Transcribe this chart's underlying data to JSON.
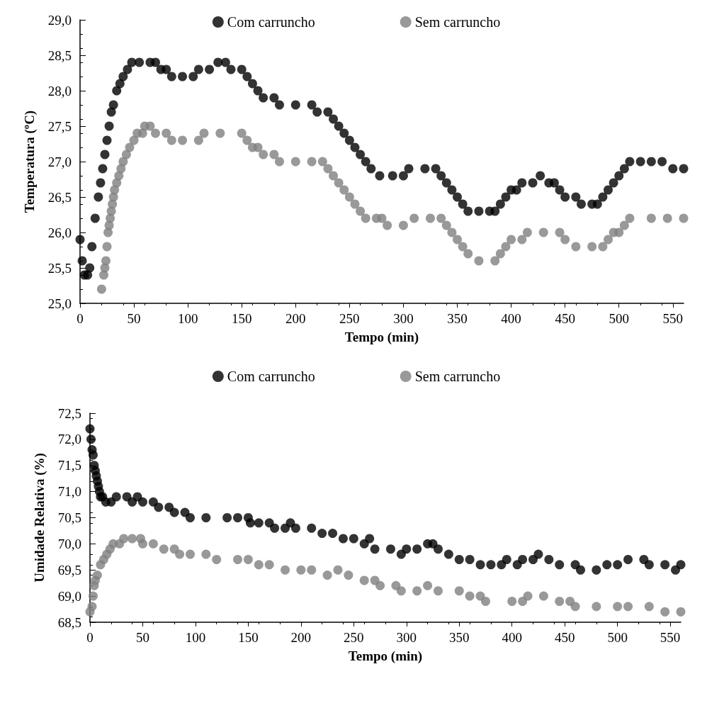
{
  "chart_data": [
    {
      "type": "scatter",
      "xlabel": "Tempo (min)",
      "ylabel": "Temperatura (ºC)",
      "xlim": [
        0,
        560
      ],
      "xticks": [
        0,
        50,
        100,
        150,
        200,
        250,
        300,
        350,
        400,
        450,
        500,
        550
      ],
      "ylim": [
        25,
        29
      ],
      "yticks": [
        {
          "value": 25,
          "label": "25,0"
        },
        {
          "value": 25.5,
          "label": "25,5"
        },
        {
          "value": 26,
          "label": "26,0"
        },
        {
          "value": 26.5,
          "label": "26,5"
        },
        {
          "value": 27,
          "label": "27,0"
        },
        {
          "value": 27.5,
          "label": "27,5"
        },
        {
          "value": 28,
          "label": "28,0"
        },
        {
          "value": 28.5,
          "label": "28,5"
        },
        {
          "value": 29,
          "label": "29,0"
        }
      ],
      "grid": false,
      "legend": "top",
      "marker": "circle",
      "series": [
        {
          "name": "Com carruncho",
          "color": "#000000",
          "x": [
            0,
            2,
            4,
            7,
            9,
            11,
            14,
            17,
            19,
            21,
            23,
            25,
            27,
            29,
            31,
            34,
            37,
            40,
            44,
            48,
            55,
            65,
            70,
            75,
            80,
            85,
            95,
            105,
            110,
            120,
            128,
            135,
            140,
            150,
            155,
            160,
            165,
            170,
            180,
            185,
            200,
            215,
            220,
            230,
            235,
            240,
            245,
            250,
            255,
            260,
            265,
            270,
            278,
            290,
            300,
            305,
            320,
            330,
            335,
            340,
            345,
            350,
            355,
            360,
            370,
            380,
            385,
            390,
            395,
            400,
            405,
            410,
            420,
            427,
            435,
            440,
            445,
            450,
            460,
            465,
            475,
            480,
            485,
            490,
            495,
            500,
            505,
            510,
            520,
            530,
            540,
            550,
            560
          ],
          "values": [
            25.9,
            25.6,
            25.4,
            25.4,
            25.5,
            25.8,
            26.2,
            26.5,
            26.7,
            26.9,
            27.1,
            27.3,
            27.5,
            27.7,
            27.8,
            28.0,
            28.1,
            28.2,
            28.3,
            28.4,
            28.4,
            28.4,
            28.4,
            28.3,
            28.3,
            28.2,
            28.2,
            28.2,
            28.3,
            28.3,
            28.4,
            28.4,
            28.3,
            28.3,
            28.2,
            28.1,
            28.0,
            27.9,
            27.9,
            27.8,
            27.8,
            27.8,
            27.7,
            27.7,
            27.6,
            27.5,
            27.4,
            27.3,
            27.2,
            27.1,
            27.0,
            26.9,
            26.8,
            26.8,
            26.8,
            26.9,
            26.9,
            26.9,
            26.8,
            26.7,
            26.6,
            26.5,
            26.4,
            26.3,
            26.3,
            26.3,
            26.3,
            26.4,
            26.5,
            26.6,
            26.6,
            26.7,
            26.7,
            26.8,
            26.7,
            26.7,
            26.6,
            26.5,
            26.5,
            26.4,
            26.4,
            26.4,
            26.5,
            26.6,
            26.7,
            26.8,
            26.9,
            27.0,
            27.0,
            27.0,
            27.0,
            26.9,
            26.9
          ]
        },
        {
          "name": "Sem carruncho",
          "color": "#808080",
          "x": [
            20,
            22,
            23,
            24,
            25,
            26,
            27,
            28,
            29,
            30,
            31,
            32,
            34,
            36,
            38,
            40,
            43,
            46,
            50,
            53,
            58,
            60,
            65,
            70,
            80,
            85,
            95,
            110,
            115,
            130,
            150,
            155,
            160,
            165,
            170,
            180,
            185,
            200,
            215,
            225,
            230,
            235,
            240,
            245,
            250,
            255,
            260,
            265,
            275,
            280,
            285,
            300,
            310,
            325,
            335,
            340,
            345,
            350,
            355,
            360,
            370,
            385,
            390,
            395,
            400,
            410,
            415,
            430,
            445,
            450,
            460,
            475,
            485,
            490,
            495,
            500,
            505,
            510,
            530,
            545,
            560
          ],
          "values": [
            25.2,
            25.4,
            25.5,
            25.6,
            25.8,
            26.0,
            26.1,
            26.2,
            26.3,
            26.4,
            26.5,
            26.6,
            26.7,
            26.8,
            26.9,
            27.0,
            27.1,
            27.2,
            27.3,
            27.4,
            27.4,
            27.5,
            27.5,
            27.4,
            27.4,
            27.3,
            27.3,
            27.3,
            27.4,
            27.4,
            27.4,
            27.3,
            27.2,
            27.2,
            27.1,
            27.1,
            27.0,
            27.0,
            27.0,
            27.0,
            26.9,
            26.8,
            26.7,
            26.6,
            26.5,
            26.4,
            26.3,
            26.2,
            26.2,
            26.2,
            26.1,
            26.1,
            26.2,
            26.2,
            26.2,
            26.1,
            26.0,
            25.9,
            25.8,
            25.7,
            25.6,
            25.6,
            25.7,
            25.8,
            25.9,
            25.9,
            26.0,
            26.0,
            26.0,
            25.9,
            25.8,
            25.8,
            25.8,
            25.9,
            26.0,
            26.0,
            26.1,
            26.2,
            26.2,
            26.2,
            26.2
          ]
        }
      ]
    },
    {
      "type": "scatter",
      "xlabel": "Tempo (min)",
      "ylabel": "Umidade Relativa (%)",
      "xlim": [
        0,
        560
      ],
      "xticks": [
        0,
        50,
        100,
        150,
        200,
        250,
        300,
        350,
        400,
        450,
        500,
        550
      ],
      "ylim": [
        68.5,
        72.5
      ],
      "yticks": [
        {
          "value": 68.5,
          "label": "68,5"
        },
        {
          "value": 69,
          "label": "69,0"
        },
        {
          "value": 69.5,
          "label": "69,5"
        },
        {
          "value": 70,
          "label": "70,0"
        },
        {
          "value": 70.5,
          "label": "70,5"
        },
        {
          "value": 71,
          "label": "71,0"
        },
        {
          "value": 71.5,
          "label": "71,5"
        },
        {
          "value": 72,
          "label": "72,0"
        },
        {
          "value": 72.5,
          "label": "72,5"
        }
      ],
      "grid": false,
      "legend": "top",
      "marker": "circle",
      "series": [
        {
          "name": "Com carruncho",
          "color": "#000000",
          "x": [
            0,
            1,
            2,
            3,
            4,
            5,
            6,
            7,
            8,
            9,
            10,
            12,
            15,
            20,
            25,
            35,
            40,
            45,
            50,
            60,
            65,
            75,
            80,
            90,
            95,
            110,
            130,
            140,
            150,
            152,
            160,
            170,
            175,
            185,
            190,
            195,
            210,
            220,
            230,
            240,
            250,
            260,
            265,
            270,
            285,
            295,
            300,
            310,
            320,
            325,
            330,
            340,
            350,
            360,
            370,
            380,
            390,
            395,
            405,
            410,
            420,
            425,
            435,
            445,
            460,
            465,
            480,
            490,
            500,
            510,
            525,
            530,
            545,
            555,
            560
          ],
          "values": [
            72.2,
            72.0,
            71.8,
            71.7,
            71.5,
            71.4,
            71.3,
            71.2,
            71.1,
            71.0,
            70.9,
            70.9,
            70.8,
            70.8,
            70.9,
            70.9,
            70.8,
            70.9,
            70.8,
            70.8,
            70.7,
            70.7,
            70.6,
            70.6,
            70.5,
            70.5,
            70.5,
            70.5,
            70.5,
            70.4,
            70.4,
            70.4,
            70.3,
            70.3,
            70.4,
            70.3,
            70.3,
            70.2,
            70.2,
            70.1,
            70.1,
            70.0,
            70.1,
            69.9,
            69.9,
            69.8,
            69.9,
            69.9,
            70.0,
            70.0,
            69.9,
            69.8,
            69.7,
            69.7,
            69.6,
            69.6,
            69.6,
            69.7,
            69.6,
            69.7,
            69.7,
            69.8,
            69.7,
            69.6,
            69.6,
            69.5,
            69.5,
            69.6,
            69.6,
            69.7,
            69.7,
            69.6,
            69.6,
            69.5,
            69.6
          ]
        },
        {
          "name": "Sem carruncho",
          "color": "#808080",
          "x": [
            0,
            2,
            3,
            4,
            5,
            7,
            10,
            13,
            16,
            19,
            22,
            28,
            32,
            40,
            48,
            50,
            60,
            70,
            80,
            85,
            95,
            110,
            120,
            140,
            150,
            160,
            170,
            185,
            200,
            210,
            225,
            235,
            245,
            260,
            270,
            275,
            290,
            295,
            310,
            320,
            330,
            350,
            360,
            370,
            375,
            400,
            410,
            415,
            430,
            445,
            455,
            460,
            480,
            500,
            510,
            530,
            545,
            560
          ],
          "values": [
            68.7,
            68.8,
            69.0,
            69.2,
            69.3,
            69.4,
            69.6,
            69.7,
            69.8,
            69.9,
            70.0,
            70.0,
            70.1,
            70.1,
            70.1,
            70.0,
            70.0,
            69.9,
            69.9,
            69.8,
            69.8,
            69.8,
            69.7,
            69.7,
            69.7,
            69.6,
            69.6,
            69.5,
            69.5,
            69.5,
            69.4,
            69.5,
            69.4,
            69.3,
            69.3,
            69.2,
            69.2,
            69.1,
            69.1,
            69.2,
            69.1,
            69.1,
            69.0,
            69.0,
            68.9,
            68.9,
            68.9,
            69.0,
            69.0,
            68.9,
            68.9,
            68.8,
            68.8,
            68.8,
            68.8,
            68.8,
            68.7,
            68.7
          ]
        }
      ]
    }
  ]
}
